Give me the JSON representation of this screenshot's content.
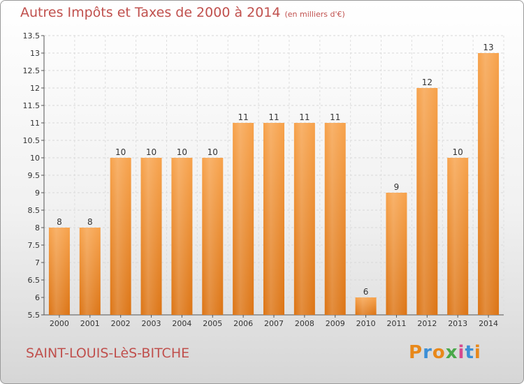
{
  "title": {
    "main": "Autres Impôts et Taxes de 2000 à 2014",
    "unit": "(en milliers d'€)"
  },
  "footer": {
    "commune": "SAINT-LOUIS-LèS-BITCHE",
    "logo_letters": [
      "P",
      "r",
      "o",
      "x",
      "i",
      "t",
      "i"
    ],
    "logo_colors": [
      "#e8881a",
      "#3c8fd6",
      "#e8881a",
      "#4aa84a",
      "#d64a8f",
      "#3c8fd6",
      "#e8881a"
    ]
  },
  "chart_data": {
    "type": "bar",
    "categories": [
      "2000",
      "2001",
      "2002",
      "2003",
      "2004",
      "2005",
      "2006",
      "2007",
      "2008",
      "2009",
      "2010",
      "2011",
      "2012",
      "2013",
      "2014"
    ],
    "values": [
      8,
      8,
      10,
      10,
      10,
      10,
      11,
      11,
      11,
      11,
      6,
      9,
      12,
      10,
      13
    ],
    "value_labels": [
      "8",
      "8",
      "10",
      "10",
      "10",
      "10",
      "11",
      "11",
      "11",
      "11",
      "6",
      "9",
      "12",
      "10",
      "13"
    ],
    "ylim": [
      5.5,
      13.5
    ],
    "yticks": [
      5.5,
      6,
      6.5,
      7,
      7.5,
      8,
      8.5,
      9,
      9.5,
      10,
      10.5,
      11,
      11.5,
      12,
      12.5,
      13,
      13.5
    ],
    "ytick_labels": [
      "5.5",
      "6",
      "6.5",
      "7",
      "7.5",
      "8",
      "8.5",
      "9",
      "9.5",
      "10",
      "10.5",
      "11",
      "11.5",
      "12",
      "12.5",
      "13",
      "13.5"
    ],
    "grid": true,
    "bar_color": "#f0902a"
  }
}
